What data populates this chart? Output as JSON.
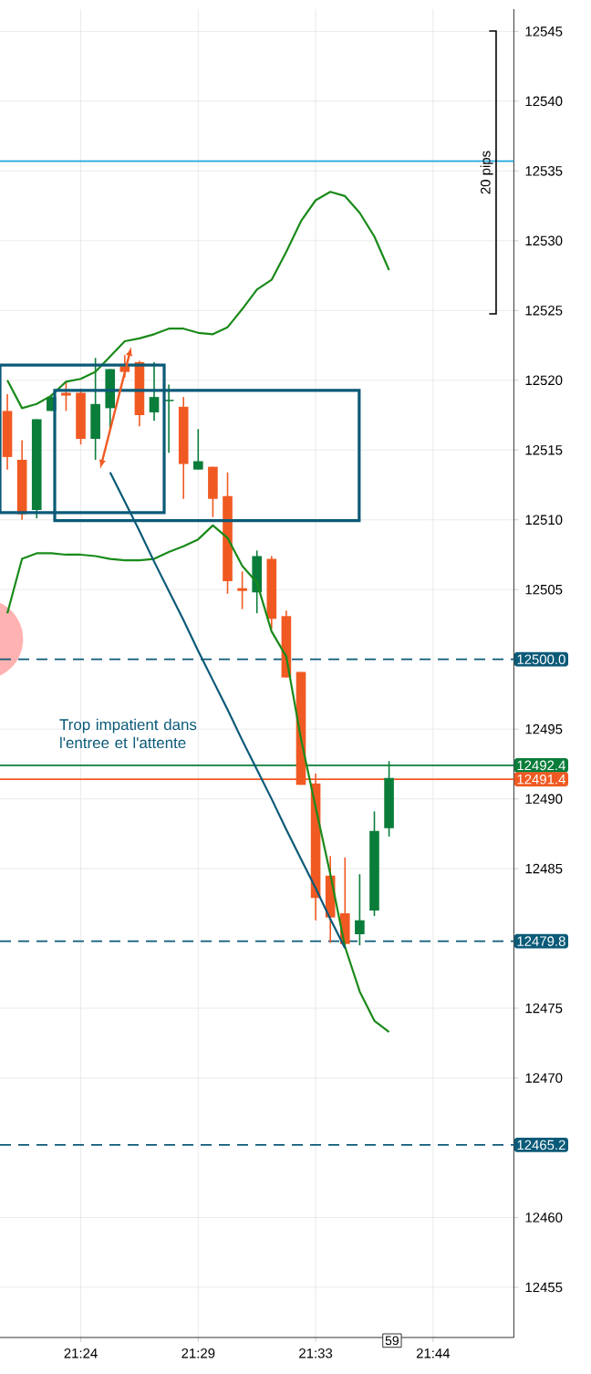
{
  "chart_data": {
    "type": "candlestick",
    "categories": [
      null,
      null,
      null,
      null,
      null,
      "21:24",
      null,
      null,
      null,
      null,
      null,
      null,
      null,
      "21:29",
      null,
      null,
      null,
      null,
      null,
      null,
      null,
      "21:33",
      null,
      null,
      null,
      null,
      null,
      null,
      null,
      "21:44",
      null,
      null,
      null,
      null,
      null
    ],
    "ohlc": [
      [
        12517.8,
        12519.0,
        12513.6,
        12514.5
      ],
      [
        12514.3,
        12515.7,
        12510.0,
        12510.4
      ],
      [
        12510.7,
        12517.2,
        12510.1,
        12517.2
      ],
      [
        12517.8,
        12519.0,
        12517.8,
        12518.8
      ],
      [
        12519.1,
        12519.9,
        12517.8,
        12518.9
      ],
      [
        12519.1,
        12519.4,
        12515.4,
        12515.8
      ],
      [
        12515.8,
        12521.6,
        12514.3,
        12518.3
      ],
      [
        12518.0,
        12520.8,
        12516.5,
        12520.8
      ],
      [
        12521.0,
        12521.8,
        12520.2,
        12520.6
      ],
      [
        12521.3,
        12521.4,
        12516.7,
        12517.5
      ],
      [
        12517.7,
        12521.3,
        12517.1,
        12518.8
      ],
      [
        12518.5,
        12519.7,
        12514.8,
        12518.6
      ],
      [
        12518.1,
        12518.8,
        12511.5,
        12514.0
      ],
      [
        12513.6,
        12516.5,
        12513.6,
        12514.2
      ],
      [
        12513.8,
        12513.8,
        12510.2,
        12511.5
      ],
      [
        12511.7,
        12513.4,
        12504.7,
        12505.6
      ],
      [
        12505.1,
        12506.3,
        12503.6,
        12504.9
      ],
      [
        12504.8,
        12507.8,
        12503.3,
        12507.4
      ],
      [
        12507.2,
        12507.4,
        12502.2,
        12502.9
      ],
      [
        12503.1,
        12503.5,
        12498.7,
        12498.7
      ],
      [
        12499.1,
        12499.1,
        12491.0,
        12491.0
      ],
      [
        12491.1,
        12491.8,
        12481.3,
        12482.9
      ],
      [
        12484.5,
        12485.9,
        12479.7,
        12481.5
      ],
      [
        12481.8,
        12485.8,
        12479.5,
        12479.6
      ],
      [
        12480.3,
        12484.6,
        12479.5,
        12481.3
      ],
      [
        12482.0,
        12489.1,
        12481.6,
        12487.7
      ],
      [
        12487.9,
        12492.7,
        12487.3,
        12491.5
      ],
      null,
      null,
      null,
      null,
      null,
      null,
      null,
      null
    ],
    "colors": [
      "#f05a22",
      "#f05a22",
      "#0a7d3a",
      "#0a7d3a",
      "#f05a22",
      "#f05a22",
      "#0a7d3a",
      "#0a7d3a",
      "#f05a22",
      "#f05a22",
      "#0a7d3a",
      "#0a7d3a",
      "#f05a22",
      "#0a7d3a",
      "#f05a22",
      "#f05a22",
      "#f05a22",
      "#0a7d3a",
      "#f05a22",
      "#f05a22",
      "#f05a22",
      "#f05a22",
      "#f05a22",
      "#f05a22",
      "#0a7d3a",
      "#0a7d3a",
      "#0a7d3a",
      null,
      null,
      null,
      null,
      null,
      null,
      null,
      null
    ],
    "series": [
      {
        "type": "line",
        "color": "#1a8a1a",
        "values": [
          12520.0,
          12518.0,
          12518.3,
          12518.9,
          12519.9,
          12520.1,
          12520.6,
          12521.7,
          12522.8,
          12523.0,
          12523.3,
          12523.7,
          12523.7,
          12523.4,
          12523.3,
          12523.8,
          12525.1,
          12526.5,
          12527.2,
          12529.2,
          12531.4,
          12532.9,
          12533.5,
          12533.2,
          12532.0,
          12530.3,
          12527.9,
          null,
          null,
          null,
          null,
          null,
          null,
          null,
          null
        ]
      },
      {
        "type": "line",
        "color": "#1a8a1a",
        "values": [
          12503.3,
          12507.2,
          12507.6,
          12507.6,
          12507.5,
          12507.5,
          12507.4,
          12507.2,
          12507.1,
          12507.1,
          12507.2,
          12507.7,
          12508.1,
          12508.6,
          12509.6,
          12508.7,
          12506.7,
          12505.5,
          12502.0,
          12500.2,
          12494.3,
          12489.4,
          12484.6,
          12479.4,
          12476.2,
          12474.1,
          12473.3,
          null,
          null,
          null,
          null,
          null,
          null,
          null,
          null
        ]
      },
      {
        "type": "line",
        "color": "#0b5a78",
        "values": [
          null,
          null,
          null,
          null,
          null,
          null,
          null,
          12513.4,
          12511.3,
          12509.2,
          12507.0,
          12504.9,
          12502.8,
          12500.6,
          12498.5,
          12496.4,
          12494.2,
          12492.1,
          12490.0,
          12487.8,
          12485.7,
          12483.6,
          12481.4,
          12479.3,
          null,
          null,
          null,
          null,
          null,
          null,
          null,
          null,
          null,
          null,
          null
        ]
      }
    ],
    "ylim": [
      12451.4,
      12546.6
    ],
    "yticks": [
      12455,
      12460,
      12470,
      12475,
      12485,
      12490,
      12495,
      12505,
      12510,
      12515,
      12520,
      12525,
      12530,
      12535,
      12540,
      12545
    ],
    "grid": true,
    "ref_lines": [
      {
        "axis": "y",
        "value": 12535.7,
        "color": "#1ea7e1",
        "line_style": "solid"
      },
      {
        "axis": "y",
        "value": 12500.0,
        "label": "12500.0",
        "color": "#0b5a78",
        "line_style": "dashed"
      },
      {
        "axis": "y",
        "value": 12492.4,
        "label": "12492.4",
        "color": "#0a7d3a",
        "line_style": "solid"
      },
      {
        "axis": "y",
        "value": 12491.4,
        "label": "12491.4",
        "color": "#f05a22",
        "line_style": "solid"
      },
      {
        "axis": "y",
        "value": 12479.8,
        "label": "12479.8",
        "color": "#0b5a78",
        "line_style": "dashed"
      },
      {
        "axis": "y",
        "value": 12465.2,
        "label": "12465.2",
        "color": "#0b5a78",
        "line_style": "dashed"
      }
    ],
    "annotations": [
      "Trop impatient dans l'entree et l'attente",
      "20 pips",
      "59"
    ]
  }
}
